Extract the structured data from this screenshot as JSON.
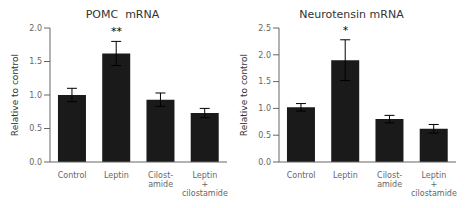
{
  "chart_data": [
    {
      "type": "bar",
      "title": "POMC  mRNA",
      "ylabel": "Relative to control",
      "categories": [
        "Control",
        "Leptin",
        "Cilost-\namide",
        "Leptin\n+\ncilostamide"
      ],
      "values": [
        1.0,
        1.62,
        0.93,
        0.73
      ],
      "errors": [
        0.1,
        0.18,
        0.1,
        0.07
      ],
      "annotations": [
        {
          "category": "Leptin",
          "text": "**"
        }
      ],
      "ylim": [
        0,
        2.0
      ],
      "yticks": [
        {
          "value": 0,
          "label": "0.0"
        },
        0.5,
        {
          "value": 1.0,
          "label": "1.0"
        },
        1.5,
        {
          "value": 2.0,
          "label": "2.0"
        }
      ],
      "color": "#1a1a1a",
      "grid": false
    },
    {
      "type": "bar",
      "title": "Neurotensin mRNA",
      "ylabel": "Relative to control",
      "categories": [
        "Control",
        "Leptin",
        "Cilost-\namide",
        "Leptin\n+\ncilostamide"
      ],
      "values": [
        1.02,
        1.9,
        0.8,
        0.62
      ],
      "errors": [
        0.07,
        0.38,
        0.07,
        0.08
      ],
      "annotations": [
        {
          "category": "Leptin",
          "text": "*"
        }
      ],
      "ylim": [
        0,
        2.5
      ],
      "yticks": [
        {
          "value": 0,
          "label": "0.0"
        },
        0.5,
        {
          "value": 1.0,
          "label": "1.0"
        },
        1.5,
        {
          "value": 2.0,
          "label": "2.0"
        },
        2.5
      ],
      "color": "#1a1a1a",
      "grid": false
    }
  ]
}
